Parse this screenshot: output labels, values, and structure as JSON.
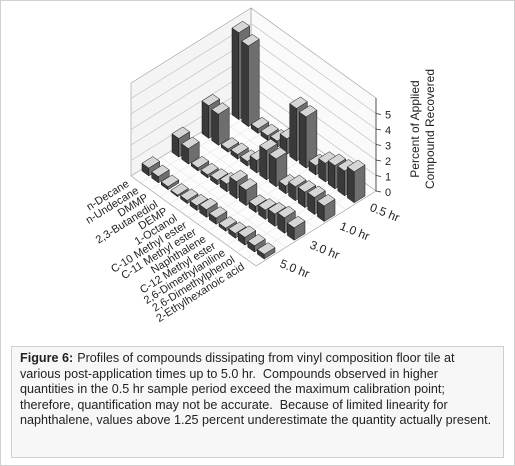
{
  "chart_data": {
    "type": "bar3d",
    "categories": [
      "n-Decane",
      "n-Undecane",
      "DMMP",
      "2,3-Butanediol",
      "DEMP",
      "1-Octanol",
      "C-10 Methyl ester",
      "C-11 Methyl ester",
      "Naphthalene",
      "C-12 Methyl ester",
      "2,6-Dimethylaniline",
      "2,6-Dimethylphenol",
      "2-Ethylhexanoic acid"
    ],
    "series": [
      {
        "name": "0.5 hr",
        "values": [
          5.6,
          5.2,
          0.3,
          0.3,
          0.4,
          1.0,
          3.4,
          3.3,
          0.6,
          1.2,
          1.5,
          1.6,
          2.0
        ]
      },
      {
        "name": "1.0 hr",
        "values": [
          2.1,
          2.0,
          0.2,
          0.3,
          0.3,
          0.8,
          1.9,
          1.8,
          0.5,
          0.9,
          1.0,
          1.1,
          1.0
        ]
      },
      {
        "name": "3.0 hr",
        "values": [
          1.2,
          1.0,
          0.2,
          0.2,
          0.3,
          0.5,
          1.1,
          1.0,
          0.4,
          0.6,
          0.8,
          1.0,
          0.8
        ]
      },
      {
        "name": "5.0 hr",
        "values": [
          0.5,
          0.4,
          0.2,
          0.1,
          0.2,
          0.3,
          0.5,
          0.4,
          0.2,
          0.3,
          0.5,
          0.4,
          0.3
        ]
      }
    ],
    "zlabel": [
      "Percent of Applied",
      "Compound  Recovered"
    ],
    "zlim": [
      0,
      6
    ],
    "zticks": [
      0,
      1,
      2,
      3,
      4,
      5
    ],
    "grid": true,
    "color": "#8c8c8c"
  },
  "caption": {
    "label": "Figure 6:",
    "text": "Profiles of compounds dissipating from vinyl composition floor tile at various post-application times up to 5.0 hr.  Compounds observed in higher quantities in the 0.5 hr sample period exceed the maximum calibration point; therefore, quantification may not be accurate.  Because of limited linearity for naphthalene, values above 1.25 percent underestimate the quantity actually present."
  }
}
